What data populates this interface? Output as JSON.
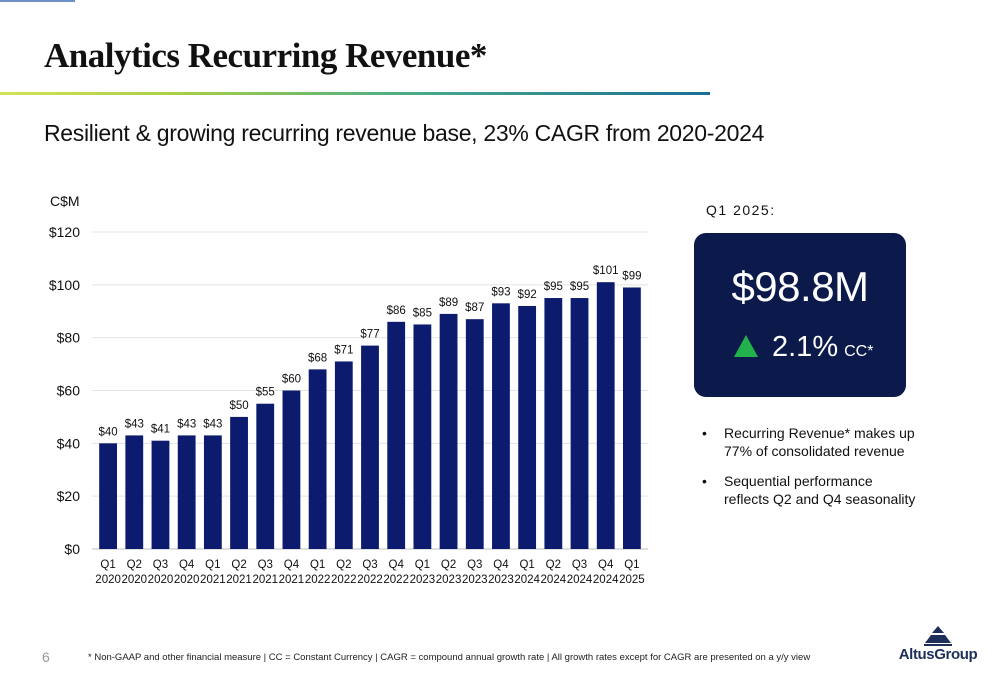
{
  "slide": {
    "title": "Analytics Recurring Revenue*",
    "subtitle": "Resilient & growing recurring revenue base, 23% CAGR from 2020-2024",
    "page_number": "6",
    "footnote": "* Non-GAAP and other financial measure | CC = Constant Currency | CAGR = compound annual growth rate |  All growth rates except for CAGR are presented on a y/y view",
    "logo_text": "AltusGroup"
  },
  "kpi": {
    "label": "Q1 2025:",
    "value": "$98.8M",
    "change": "2.1%",
    "basis": "CC*",
    "change_icon": "up-triangle-icon"
  },
  "bullets": [
    "Recurring Revenue* makes up 77% of consolidated revenue",
    "Sequential performance reflects Q2 and Q4 seasonality"
  ],
  "colors": {
    "bar": "#0d1b6e",
    "card": "#0b1a4a",
    "up": "#21b24b",
    "logo": "#1e2f5a"
  },
  "chart_data": {
    "type": "bar",
    "ylabel": "C$M",
    "ylim": [
      0,
      120
    ],
    "yticks": [
      0,
      20,
      40,
      60,
      80,
      100,
      120
    ],
    "ytick_labels": [
      "$0",
      "$20",
      "$40",
      "$60",
      "$80",
      "$100",
      "$120"
    ],
    "grid": true,
    "categories": [
      [
        "Q1",
        "2020"
      ],
      [
        "Q2",
        "2020"
      ],
      [
        "Q3",
        "2020"
      ],
      [
        "Q4",
        "2020"
      ],
      [
        "Q1",
        "2021"
      ],
      [
        "Q2",
        "2021"
      ],
      [
        "Q3",
        "2021"
      ],
      [
        "Q4",
        "2021"
      ],
      [
        "Q1",
        "2022"
      ],
      [
        "Q2",
        "2022"
      ],
      [
        "Q3",
        "2022"
      ],
      [
        "Q4",
        "2022"
      ],
      [
        "Q1",
        "2023"
      ],
      [
        "Q2",
        "2023"
      ],
      [
        "Q3",
        "2023"
      ],
      [
        "Q4",
        "2023"
      ],
      [
        "Q1",
        "2024"
      ],
      [
        "Q2",
        "2024"
      ],
      [
        "Q3",
        "2024"
      ],
      [
        "Q4",
        "2024"
      ],
      [
        "Q1",
        "2025"
      ]
    ],
    "values": [
      40,
      43,
      41,
      43,
      43,
      50,
      55,
      60,
      68,
      71,
      77,
      86,
      85,
      89,
      87,
      93,
      92,
      95,
      95,
      101,
      99
    ],
    "value_labels": [
      "$40",
      "$43",
      "$41",
      "$43",
      "$43",
      "$50",
      "$55",
      "$60",
      "$68",
      "$71",
      "$77",
      "$86",
      "$85",
      "$89",
      "$87",
      "$93",
      "$92",
      "$95",
      "$95",
      "$101",
      "$99"
    ]
  }
}
